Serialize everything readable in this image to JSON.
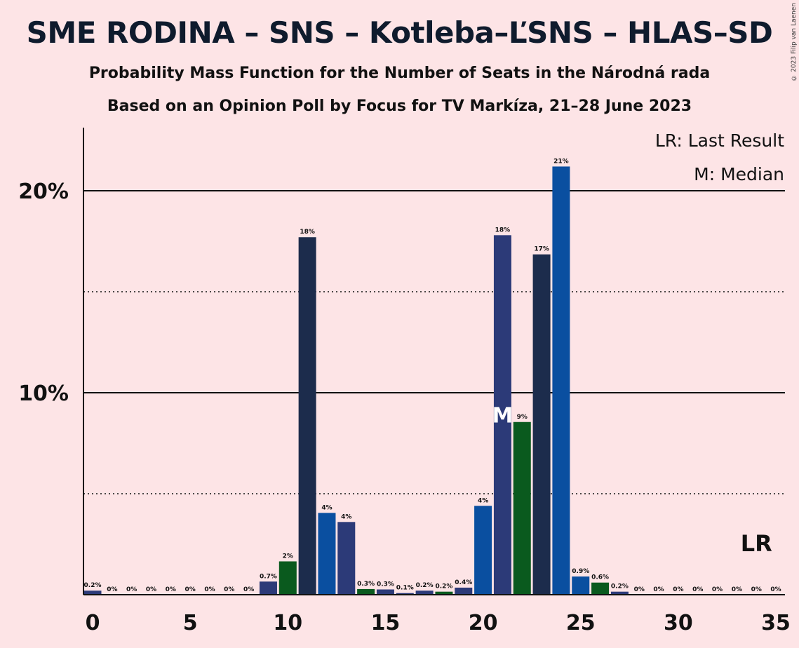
{
  "title": "SME RODINA – SNS – Kotleba–ĽSNS – HLAS–SD",
  "subtitle1": "Probability Mass Function for the Number of Seats in the Národná rada",
  "subtitle2": "Based on an Opinion Poll by Focus for TV Markíza, 21–28 June 2023",
  "copyright": "© 2023 Filip van Laenen",
  "legend": {
    "lr": "LR: Last Result",
    "median": "M: Median"
  },
  "markers": {
    "last_result": "LR",
    "median": "M"
  },
  "colors": {
    "background": "#fde4e6",
    "sme_rodina": "#2c3a78",
    "sns": "#0a4fa0",
    "kotleba": "#1c2c4c",
    "hlas": "#0a5a1e"
  },
  "chart_data": {
    "type": "bar",
    "x": [
      0,
      1,
      2,
      3,
      4,
      5,
      6,
      7,
      8,
      9,
      10,
      11,
      12,
      13,
      14,
      15,
      16,
      17,
      18,
      19,
      20,
      21,
      22,
      23,
      24,
      25,
      26,
      27,
      28,
      29,
      30,
      31,
      32,
      33,
      34,
      35
    ],
    "values": [
      0.2,
      0,
      0,
      0,
      0,
      0,
      0,
      0,
      0,
      0.65,
      1.65,
      17.7,
      4.05,
      3.6,
      0.28,
      0.26,
      0.08,
      0.2,
      0.15,
      0.35,
      4.4,
      17.8,
      8.55,
      16.85,
      21.2,
      0.9,
      0.6,
      0.15,
      0,
      0,
      0,
      0,
      0,
      0,
      0,
      0
    ],
    "labels": [
      "0.2%",
      "0%",
      "0%",
      "0%",
      "0%",
      "0%",
      "0%",
      "0%",
      "0%",
      "0.7%",
      "2%",
      "18%",
      "4%",
      "4%",
      "0.3%",
      "0.3%",
      "0.1%",
      "0.2%",
      "0.2%",
      "0.4%",
      "4%",
      "18%",
      "9%",
      "17%",
      "21%",
      "0.9%",
      "0.6%",
      "0.2%",
      "0%",
      "0%",
      "0%",
      "0%",
      "0%",
      "0%",
      "0%",
      "0%"
    ],
    "bar_colors": [
      "sme_rodina",
      "kotleba",
      "sme_rodina",
      "sme_rodina",
      "sme_rodina",
      "sme_rodina",
      "sme_rodina",
      "sme_rodina",
      "sme_rodina",
      "sme_rodina",
      "hlas",
      "kotleba",
      "sns",
      "sme_rodina",
      "hlas",
      "sme_rodina",
      "sme_rodina",
      "sme_rodina",
      "hlas",
      "sme_rodina",
      "sns",
      "sme_rodina",
      "hlas",
      "kotleba",
      "sns",
      "sns",
      "hlas",
      "sme_rodina",
      "sme_rodina",
      "sme_rodina",
      "sme_rodina",
      "sme_rodina",
      "sme_rodina",
      "sme_rodina",
      "sme_rodina",
      "sme_rodina"
    ],
    "xticks": [
      0,
      5,
      10,
      15,
      20,
      25,
      30,
      35
    ],
    "yticks": [
      {
        "value": 10,
        "label": "10%"
      },
      {
        "value": 20,
        "label": "20%"
      }
    ],
    "dotted_gridlines": [
      5,
      15
    ],
    "ylim": [
      0,
      23
    ],
    "median_seat": 21,
    "last_result_seat": 34
  }
}
